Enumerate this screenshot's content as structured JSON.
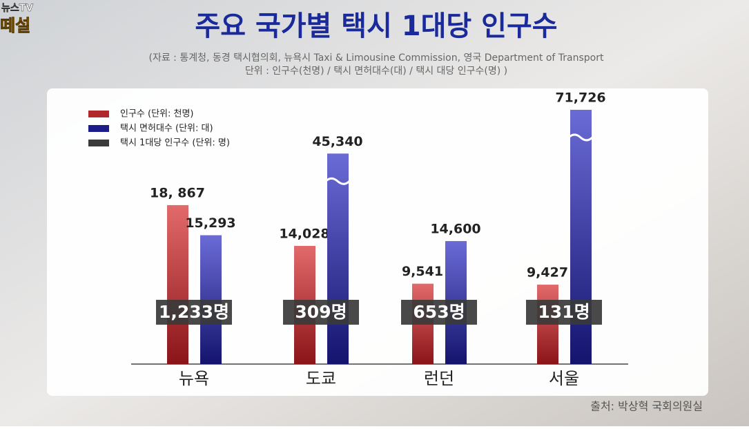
{
  "brand": {
    "channel": "뉴스TV",
    "program": "떼설"
  },
  "chart_data": {
    "type": "bar",
    "title": "주요 국가별 택시 1대당 인구수",
    "subtitle": [
      "(자료 : 통계청, 동경 택시협의회, 뉴욕시 Taxi & Limousine Commission, 영국 Department of Transport",
      "단위 : 인구수(천명) / 택시 면허대수(대) / 택시 대당 인구수(명) )"
    ],
    "source": "출처: 박상혁 국회의원실",
    "categories": [
      "뉴욕",
      "도쿄",
      "런던",
      "서울"
    ],
    "series": [
      {
        "name": "인구수 (단위: 천명)",
        "color": "#b0282c",
        "values": [
          18867,
          14028,
          9541,
          9427
        ],
        "value_labels": [
          "18, 867",
          "14,028",
          "9,541",
          "9,427"
        ]
      },
      {
        "name": "택시 면허대수 (단위: 대)",
        "color": "#1c1c8a",
        "values": [
          15293,
          45340,
          14600,
          71726
        ],
        "value_labels": [
          "15,293",
          "45,340",
          "14,600",
          "71,726"
        ]
      },
      {
        "name": "택시 1대당 인구수 (단위: 명)",
        "color": "#3a3a3a",
        "values": [
          1233,
          309,
          653,
          131
        ],
        "value_labels": [
          "1,233명",
          "309명",
          "653명",
          "131명"
        ]
      }
    ]
  }
}
